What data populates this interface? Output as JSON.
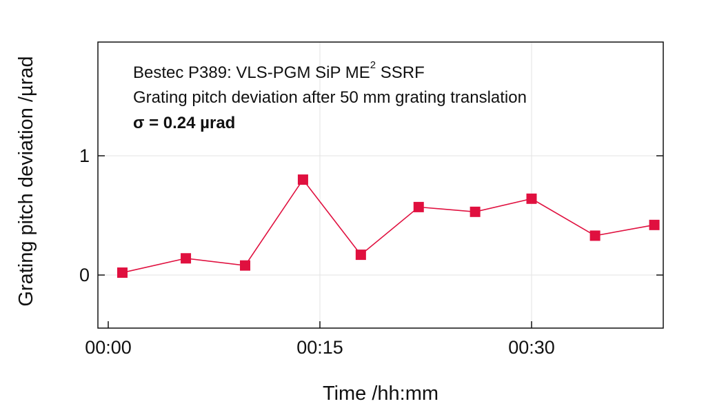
{
  "chart_data": {
    "type": "line",
    "title": "",
    "xlabel": "Time /hh:mm",
    "ylabel": "Grating pitch deviation /µrad",
    "x_unit": "minutes",
    "xlim": [
      0,
      40
    ],
    "ylim": [
      -0.45,
      1.9
    ],
    "xticks": [
      0,
      15,
      30
    ],
    "xtick_labels": [
      "00:00",
      "00:15",
      "00:30"
    ],
    "yticks": [
      0,
      1
    ],
    "ytick_labels": [
      "0",
      "1"
    ],
    "grid": true,
    "series": [
      {
        "color": "#e0103f",
        "marker": "square",
        "x": [
          1,
          5.5,
          9.7,
          13.8,
          17.9,
          22.0,
          26.0,
          30.0,
          34.5,
          38.7
        ],
        "y": [
          0.02,
          0.14,
          0.08,
          0.8,
          0.17,
          0.57,
          0.53,
          0.64,
          0.33,
          0.42
        ]
      }
    ],
    "annotations": {
      "line1_main": "Bestec P389: VLS-PGM SiP ME",
      "line1_sup": "2",
      "line1_tail": " SSRF",
      "line2": "Grating pitch deviation after 50 mm grating translation",
      "line3": "σ  = 0.24 µrad"
    }
  }
}
